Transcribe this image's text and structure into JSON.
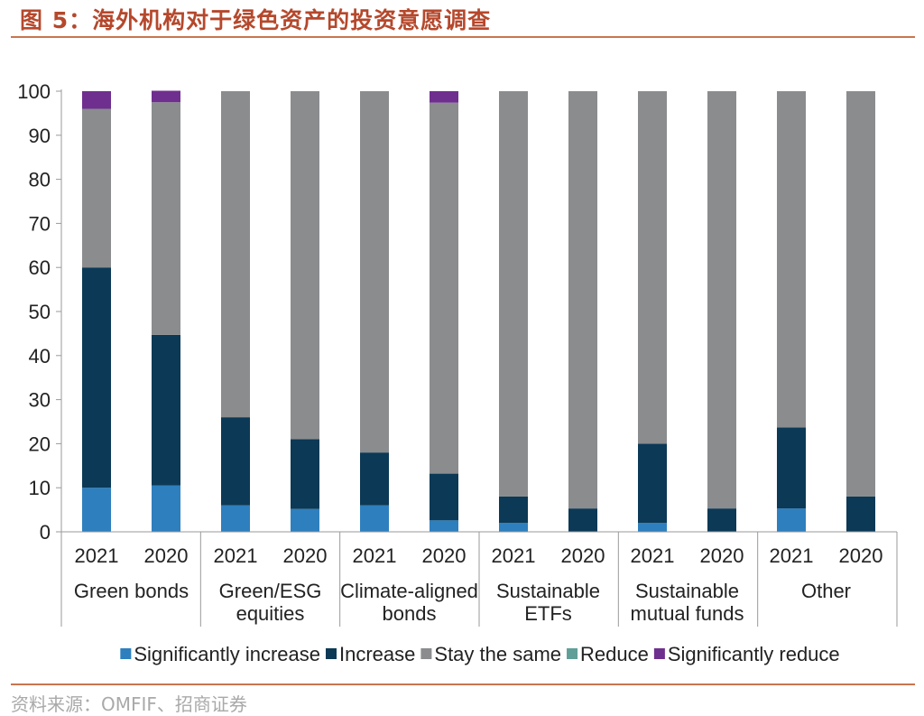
{
  "figure": {
    "title": "图 5：海外机构对于绿色资产的投资意愿调查",
    "source": "资料来源：OMFIF、招商证券"
  },
  "chart_data": {
    "type": "bar",
    "stacked": true,
    "ylim": [
      0,
      100
    ],
    "yticks": [
      0,
      10,
      20,
      30,
      40,
      50,
      60,
      70,
      80,
      90,
      100
    ],
    "groups": [
      {
        "label": [
          "Green bonds"
        ],
        "years": [
          "2021",
          "2020"
        ]
      },
      {
        "label": [
          "Green/ESG",
          "equities"
        ],
        "years": [
          "2021",
          "2020"
        ]
      },
      {
        "label": [
          "Climate-aligned",
          "bonds"
        ],
        "years": [
          "2021",
          "2020"
        ]
      },
      {
        "label": [
          "Sustainable",
          "ETFs"
        ],
        "years": [
          "2021",
          "2020"
        ]
      },
      {
        "label": [
          "Sustainable",
          "mutual funds"
        ],
        "years": [
          "2021",
          "2020"
        ]
      },
      {
        "label": [
          "Other"
        ],
        "years": [
          "2021",
          "2020"
        ]
      }
    ],
    "series": [
      {
        "name": "Significantly increase",
        "color": "#2e7fbd",
        "values": [
          10,
          10.5,
          6,
          5.2,
          6,
          2.6,
          2,
          0,
          2,
          0,
          5.3,
          0
        ]
      },
      {
        "name": "Increase",
        "color": "#0b3956",
        "values": [
          50,
          34.2,
          20,
          15.8,
          12,
          10.6,
          6,
          5.3,
          18,
          5.3,
          18.4,
          8
        ]
      },
      {
        "name": "Stay the same",
        "color": "#8b8c8e",
        "values": [
          36,
          52.8,
          74,
          79,
          82,
          84.2,
          92,
          94.7,
          80,
          94.7,
          76.3,
          92
        ]
      },
      {
        "name": "Reduce",
        "color": "#5f9f98",
        "values": [
          0,
          0,
          0,
          0,
          0,
          0,
          0,
          0,
          0,
          0,
          0,
          0
        ]
      },
      {
        "name": "Significantly reduce",
        "color": "#6f2f8f",
        "values": [
          4,
          2.6,
          0,
          0,
          0,
          2.6,
          0,
          0,
          0,
          0,
          0,
          0
        ]
      }
    ],
    "legend_position": "bottom",
    "grid": false
  }
}
